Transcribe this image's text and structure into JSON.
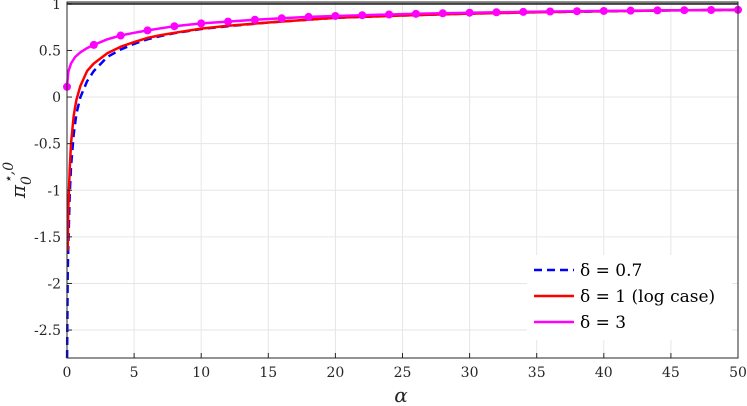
{
  "chart_data": {
    "type": "line",
    "xlabel": "α",
    "ylabel_main": "π",
    "ylabel_sub": "0",
    "ylabel_sup": "⋆,0",
    "xlim": [
      0,
      50
    ],
    "ylim": [
      -2.8,
      1.02
    ],
    "grid": true,
    "legend_position": "bottom-right",
    "x_ticks": [
      0,
      5,
      10,
      15,
      20,
      25,
      30,
      35,
      40,
      45,
      50
    ],
    "x_tick_labels": [
      "0",
      "5",
      "10",
      "15",
      "20",
      "25",
      "30",
      "35",
      "40",
      "45",
      "50"
    ],
    "y_ticks": [
      1,
      0.5,
      0,
      -0.5,
      -1,
      -1.5,
      -2,
      -2.5
    ],
    "y_tick_labels": [
      "1",
      "0.5",
      "0",
      "-0.5",
      "-1",
      "-1.5",
      "-2",
      "-2.5"
    ],
    "reference_line": {
      "y": 1,
      "color": "#404040"
    },
    "series": [
      {
        "name": "δ = 0.7",
        "color": "#0000ff",
        "style": "dashed",
        "x": [
          0.01,
          0.05,
          0.1,
          0.2,
          0.3,
          0.5,
          0.7,
          1,
          1.5,
          2,
          3,
          4,
          5,
          6,
          7,
          8,
          10,
          12,
          15,
          20,
          25,
          30,
          35,
          40,
          45,
          50
        ],
        "y": [
          -2.8,
          -1.9,
          -1.6,
          -1.05,
          -0.75,
          -0.4,
          -0.18,
          0.0,
          0.17,
          0.28,
          0.43,
          0.51,
          0.57,
          0.62,
          0.655,
          0.685,
          0.73,
          0.76,
          0.8,
          0.85,
          0.875,
          0.895,
          0.91,
          0.92,
          0.93,
          0.935
        ]
      },
      {
        "name": "δ = 1 (log case)",
        "color": "#ff0000",
        "style": "solid",
        "x": [
          0.05,
          0.1,
          0.2,
          0.3,
          0.5,
          0.7,
          1,
          1.5,
          2,
          3,
          4,
          5,
          6,
          7,
          8,
          10,
          12,
          15,
          20,
          25,
          30,
          35,
          40,
          45,
          50
        ],
        "y": [
          -1.65,
          -1.2,
          -0.78,
          -0.5,
          -0.2,
          -0.03,
          0.12,
          0.28,
          0.36,
          0.47,
          0.54,
          0.59,
          0.635,
          0.665,
          0.69,
          0.735,
          0.765,
          0.8,
          0.85,
          0.875,
          0.895,
          0.91,
          0.92,
          0.93,
          0.935
        ]
      },
      {
        "name": "δ = 3",
        "color": "#ff00ff",
        "style": "solid-markers",
        "x": [
          0,
          0.1,
          0.3,
          0.6,
          1,
          1.5,
          2,
          3,
          4,
          5,
          6,
          8,
          10,
          12,
          14,
          16,
          18,
          20,
          22,
          24,
          26,
          28,
          30,
          32,
          34,
          36,
          38,
          40,
          42,
          44,
          46,
          48,
          50
        ],
        "y": [
          0.11,
          0.27,
          0.36,
          0.43,
          0.48,
          0.525,
          0.56,
          0.62,
          0.66,
          0.69,
          0.715,
          0.76,
          0.79,
          0.81,
          0.83,
          0.845,
          0.86,
          0.87,
          0.878,
          0.886,
          0.893,
          0.899,
          0.905,
          0.91,
          0.914,
          0.918,
          0.921,
          0.924,
          0.927,
          0.93,
          0.932,
          0.934,
          0.936
        ],
        "marker_x": [
          0,
          2,
          4,
          6,
          8,
          10,
          12,
          14,
          16,
          18,
          20,
          22,
          24,
          26,
          28,
          30,
          32,
          34,
          36,
          38,
          40,
          42,
          44,
          46,
          48,
          50
        ]
      }
    ]
  }
}
